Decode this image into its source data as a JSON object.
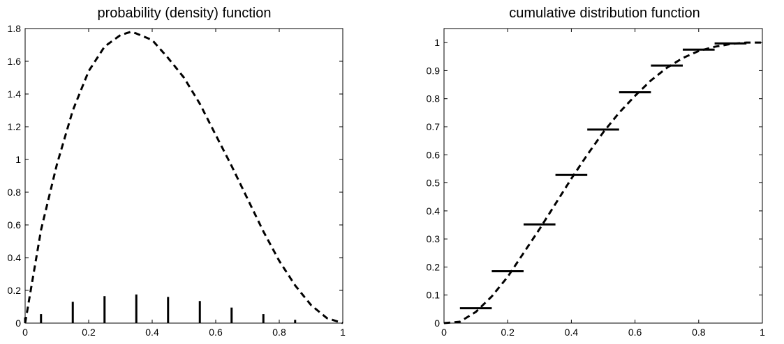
{
  "chart_data": [
    {
      "type": "bar",
      "title": "probability (density) function",
      "xlim": [
        0,
        1
      ],
      "ylim": [
        0,
        1.8
      ],
      "xticks": [
        0,
        0.2,
        0.4,
        0.6,
        0.8,
        1
      ],
      "xtick_labels": [
        "0",
        "0.2",
        "0.4",
        "0.6",
        "0.8",
        "1"
      ],
      "yticks": [
        0,
        0.2,
        0.4,
        0.6,
        0.8,
        1,
        1.2,
        1.4,
        1.6,
        1.8
      ],
      "ytick_labels": [
        "0",
        "0.2",
        "0.4",
        "0.6",
        "0.8",
        "1",
        "1.2",
        "1.4",
        "1.6",
        "1.8"
      ],
      "series": [
        {
          "kind": "stem",
          "x": [
            0,
            0.05,
            0.15,
            0.25,
            0.35,
            0.45,
            0.55,
            0.65,
            0.75,
            0.85,
            0.95
          ],
          "y": [
            0.035,
            0.055,
            0.13,
            0.165,
            0.175,
            0.16,
            0.135,
            0.095,
            0.055,
            0.02,
            0.0
          ]
        },
        {
          "kind": "dashed-curve",
          "x": [
            0,
            0.05,
            0.1,
            0.15,
            0.2,
            0.25,
            0.3,
            0.333,
            0.35,
            0.4,
            0.45,
            0.5,
            0.55,
            0.6,
            0.65,
            0.7,
            0.75,
            0.8,
            0.85,
            0.9,
            0.95,
            1.0
          ],
          "y": [
            0.0,
            0.57,
            0.97,
            1.3,
            1.54,
            1.69,
            1.76,
            1.78,
            1.77,
            1.73,
            1.62,
            1.5,
            1.34,
            1.15,
            0.96,
            0.76,
            0.56,
            0.38,
            0.23,
            0.11,
            0.03,
            0.0
          ]
        }
      ]
    },
    {
      "type": "line",
      "title": "cumulative distribution function",
      "xlim": [
        0,
        1
      ],
      "ylim": [
        0,
        1.05
      ],
      "xticks": [
        0,
        0.2,
        0.4,
        0.6,
        0.8,
        1
      ],
      "xtick_labels": [
        "0",
        "0.2",
        "0.4",
        "0.6",
        "0.8",
        "1"
      ],
      "yticks": [
        0,
        0.1,
        0.2,
        0.3,
        0.4,
        0.5,
        0.6,
        0.7,
        0.8,
        0.9,
        1
      ],
      "ytick_labels": [
        "0",
        "0.1",
        "0.2",
        "0.3",
        "0.4",
        "0.5",
        "0.6",
        "0.7",
        "0.8",
        "0.9",
        "1"
      ],
      "series": [
        {
          "kind": "steps",
          "x_start": [
            0.05,
            0.15,
            0.25,
            0.35,
            0.45,
            0.55,
            0.65,
            0.75,
            0.85
          ],
          "x_end": [
            0.15,
            0.25,
            0.35,
            0.45,
            0.55,
            0.65,
            0.75,
            0.85,
            0.95
          ],
          "y": [
            0.053,
            0.185,
            0.352,
            0.528,
            0.69,
            0.823,
            0.918,
            0.975,
            0.997
          ]
        },
        {
          "kind": "dashed-curve",
          "x": [
            0,
            0.05,
            0.1,
            0.15,
            0.2,
            0.25,
            0.3,
            0.35,
            0.4,
            0.45,
            0.5,
            0.55,
            0.6,
            0.65,
            0.7,
            0.75,
            0.8,
            0.85,
            0.9,
            0.95,
            1.0
          ],
          "y": [
            0.0,
            0.005,
            0.04,
            0.095,
            0.165,
            0.25,
            0.335,
            0.425,
            0.515,
            0.6,
            0.68,
            0.75,
            0.81,
            0.865,
            0.91,
            0.945,
            0.97,
            0.985,
            0.995,
            1.0,
            1.0
          ]
        }
      ]
    }
  ]
}
